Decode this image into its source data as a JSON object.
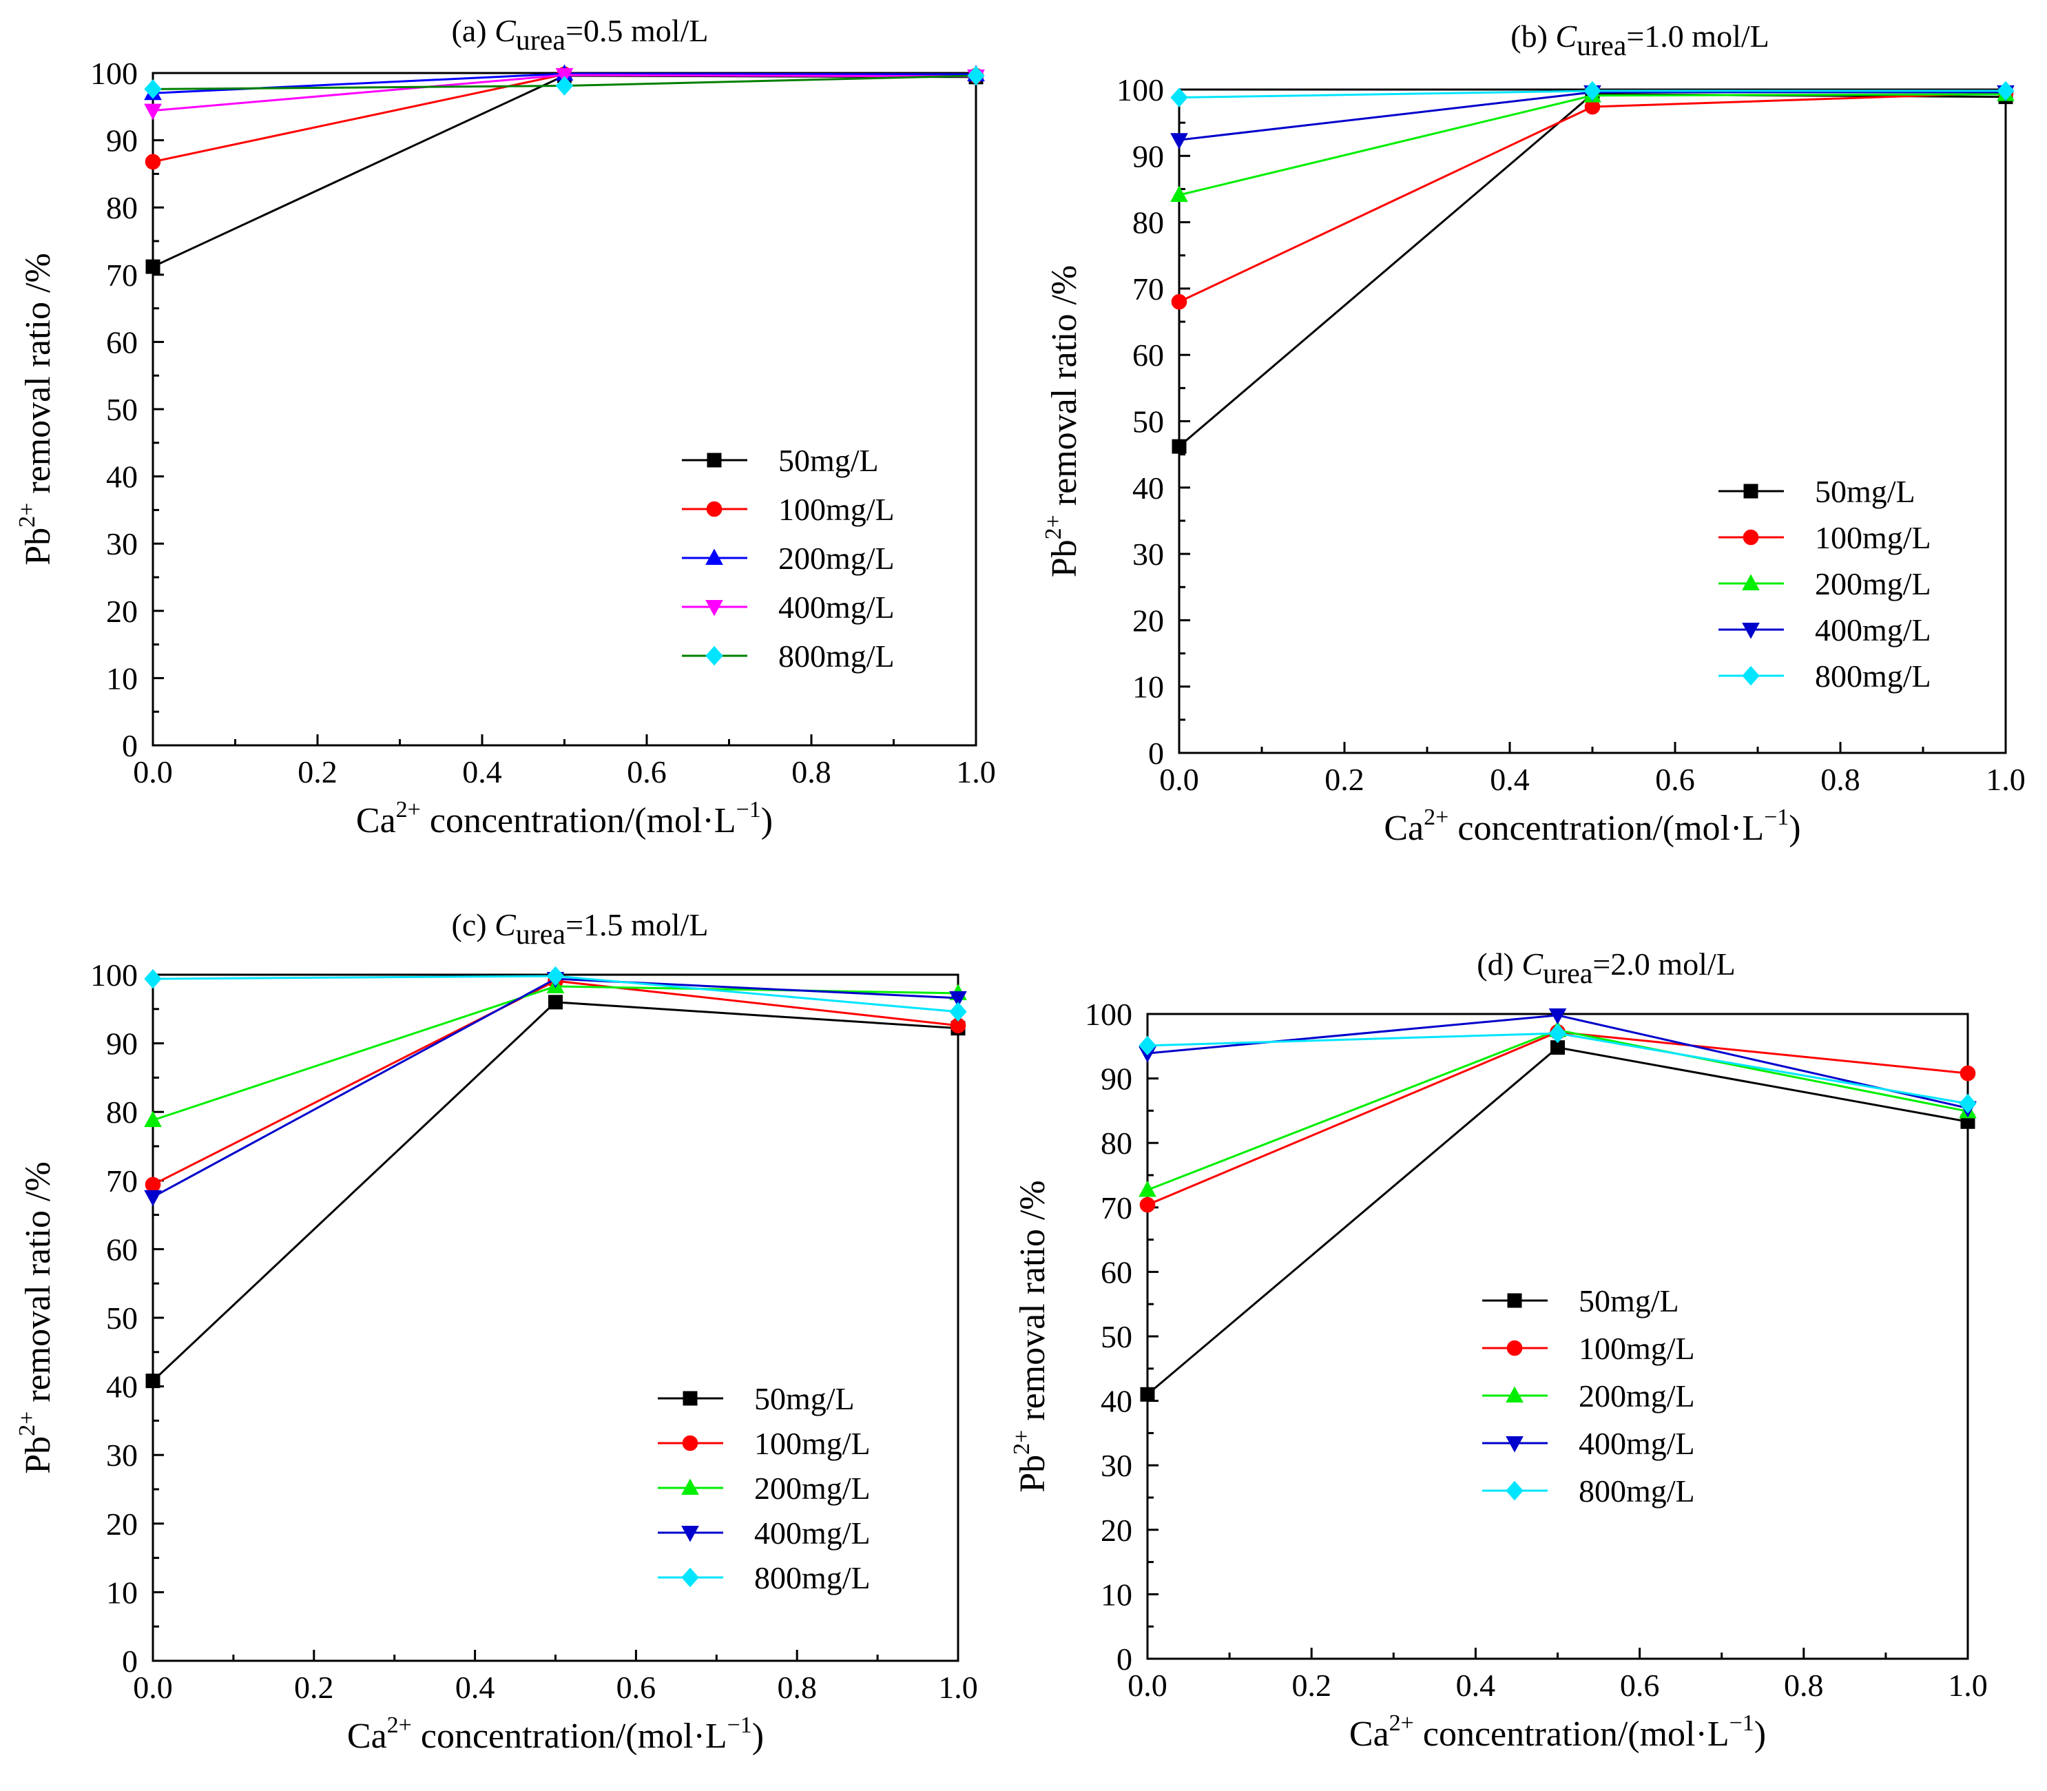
{
  "chart_data": [
    {
      "type": "line",
      "panel": "(a)",
      "title_prefix": "(a) ",
      "title_var": "C",
      "title_sub": "urea",
      "title_suffix": "=0.5 mol/L",
      "xlabel": {
        "main": "Ca",
        "sup": "2+",
        "mid": " concentration/(mol·L",
        "sup2": "−1",
        "end": ")"
      },
      "ylabel": {
        "main": "Pb",
        "sup": "2+",
        "end": " removal ratio /%"
      },
      "x": [
        0.0,
        0.5,
        1.0
      ],
      "xlim": [
        0,
        1
      ],
      "ylim": [
        0,
        100
      ],
      "xticks": [
        "0.0",
        "0.2",
        "0.4",
        "0.6",
        "0.8",
        "1.0"
      ],
      "yticks": [
        "0",
        "10",
        "20",
        "30",
        "40",
        "50",
        "60",
        "70",
        "80",
        "90",
        "100"
      ],
      "legend_position": "lower-right",
      "series": [
        {
          "name": "50mg/L",
          "color": "#000000",
          "marker": "square",
          "values": [
            71.2,
            99.6,
            99.4
          ]
        },
        {
          "name": "100mg/L",
          "color": "#ff0000",
          "marker": "circle",
          "values": [
            86.8,
            99.8,
            99.6
          ]
        },
        {
          "name": "200mg/L",
          "color": "#0000ff",
          "marker": "triangle",
          "values": [
            97.0,
            99.9,
            99.8
          ]
        },
        {
          "name": "400mg/L",
          "color": "#ff00ff",
          "marker": "tri-down",
          "values": [
            94.4,
            99.7,
            99.5
          ]
        },
        {
          "name": "800mg/L",
          "color": "#008000",
          "marker": "diamond",
          "values": [
            97.6,
            98.1,
            99.6
          ],
          "marker_color": "#00e5ff"
        }
      ]
    },
    {
      "type": "line",
      "panel": "(b)",
      "title_prefix": "(b) ",
      "title_var": "C",
      "title_sub": "urea",
      "title_suffix": "=1.0 mol/L",
      "xlabel": {
        "main": "Ca",
        "sup": "2+",
        "mid": " concentration/(mol·L",
        "sup2": "−1",
        "end": ")"
      },
      "ylabel": {
        "main": "Pb",
        "sup": "2+",
        "end": " removal ratio /%"
      },
      "x": [
        0.0,
        0.5,
        1.0
      ],
      "xlim": [
        0,
        1
      ],
      "ylim": [
        0,
        100
      ],
      "xticks": [
        "0.0",
        "0.2",
        "0.4",
        "0.6",
        "0.8",
        "1.0"
      ],
      "yticks": [
        "0",
        "10",
        "20",
        "30",
        "40",
        "50",
        "60",
        "70",
        "80",
        "90",
        "100"
      ],
      "legend_position": "lower-right",
      "series": [
        {
          "name": "50mg/L",
          "color": "#000000",
          "marker": "square",
          "values": [
            46.2,
            99.3,
            98.9
          ]
        },
        {
          "name": "100mg/L",
          "color": "#ff0000",
          "marker": "circle",
          "values": [
            68.0,
            97.4,
            99.5
          ]
        },
        {
          "name": "200mg/L",
          "color": "#00ee00",
          "marker": "triangle",
          "values": [
            84.1,
            99.1,
            99.3
          ]
        },
        {
          "name": "400mg/L",
          "color": "#0000cc",
          "marker": "tri-down",
          "values": [
            92.4,
            99.6,
            99.6
          ]
        },
        {
          "name": "800mg/L",
          "color": "#00e5ff",
          "marker": "diamond",
          "values": [
            98.8,
            99.8,
            99.8
          ]
        }
      ]
    },
    {
      "type": "line",
      "panel": "(c)",
      "title_prefix": "(c) ",
      "title_var": "C",
      "title_sub": "urea",
      "title_suffix": "=1.5 mol/L",
      "xlabel": {
        "main": "Ca",
        "sup": "2+",
        "mid": " concentration/(mol·L",
        "sup2": "−1",
        "end": ")"
      },
      "ylabel": {
        "main": "Pb",
        "sup": "2+",
        "end": " removal ratio /%"
      },
      "x": [
        0.0,
        0.5,
        1.0
      ],
      "xlim": [
        0,
        1
      ],
      "ylim": [
        0,
        100
      ],
      "xticks": [
        "0.0",
        "0.2",
        "0.4",
        "0.6",
        "0.8",
        "1.0"
      ],
      "yticks": [
        "0",
        "10",
        "20",
        "30",
        "40",
        "50",
        "60",
        "70",
        "80",
        "90",
        "100"
      ],
      "legend_position": "lower-right",
      "series": [
        {
          "name": "50mg/L",
          "color": "#000000",
          "marker": "square",
          "values": [
            40.8,
            96.0,
            92.2
          ]
        },
        {
          "name": "100mg/L",
          "color": "#ff0000",
          "marker": "circle",
          "values": [
            69.4,
            99.1,
            92.6
          ]
        },
        {
          "name": "200mg/L",
          "color": "#00ee00",
          "marker": "triangle",
          "values": [
            78.8,
            98.3,
            97.3
          ]
        },
        {
          "name": "400mg/L",
          "color": "#0000cc",
          "marker": "tri-down",
          "values": [
            67.6,
            99.4,
            96.6
          ]
        },
        {
          "name": "800mg/L",
          "color": "#00e5ff",
          "marker": "diamond",
          "values": [
            99.4,
            99.8,
            94.6
          ]
        }
      ]
    },
    {
      "type": "line",
      "panel": "(d)",
      "title_prefix": "(d) ",
      "title_var": "C",
      "title_sub": "urea",
      "title_suffix": "=2.0 mol/L",
      "xlabel": {
        "main": "Ca",
        "sup": "2+",
        "mid": " concentration/(mol·L",
        "sup2": "−1",
        "end": ")"
      },
      "ylabel": {
        "main": "Pb",
        "sup": "2+",
        "end": " removal ratio /%"
      },
      "x": [
        0.0,
        0.5,
        1.0
      ],
      "xlim": [
        0,
        1
      ],
      "ylim": [
        0,
        100
      ],
      "xticks": [
        "0.0",
        "0.2",
        "0.4",
        "0.6",
        "0.8",
        "1.0"
      ],
      "yticks": [
        "0",
        "10",
        "20",
        "30",
        "40",
        "50",
        "60",
        "70",
        "80",
        "90",
        "100"
      ],
      "legend_position": "center-left",
      "series": [
        {
          "name": "50mg/L",
          "color": "#000000",
          "marker": "square",
          "values": [
            41.0,
            94.8,
            83.3
          ]
        },
        {
          "name": "100mg/L",
          "color": "#ff0000",
          "marker": "circle",
          "values": [
            70.4,
            97.2,
            90.8
          ]
        },
        {
          "name": "200mg/L",
          "color": "#00ee00",
          "marker": "triangle",
          "values": [
            72.7,
            97.5,
            84.9
          ]
        },
        {
          "name": "400mg/L",
          "color": "#0000cc",
          "marker": "tri-down",
          "values": [
            93.9,
            99.8,
            85.4
          ]
        },
        {
          "name": "800mg/L",
          "color": "#00e5ff",
          "marker": "diamond",
          "values": [
            95.1,
            97.0,
            86.1
          ]
        }
      ]
    }
  ]
}
